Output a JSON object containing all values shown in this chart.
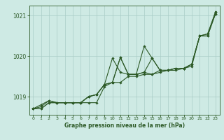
{
  "title": "Graphe pression niveau de la mer (hPa)",
  "background_color": "#ceeae4",
  "grid_color": "#aaccc6",
  "line_color": "#2d5a27",
  "ylim": [
    1018.55,
    1021.25
  ],
  "xlim": [
    -0.5,
    23.5
  ],
  "yticks": [
    1019,
    1020,
    1021
  ],
  "xticks": [
    0,
    1,
    2,
    3,
    4,
    5,
    6,
    7,
    8,
    9,
    10,
    11,
    12,
    13,
    14,
    15,
    16,
    17,
    18,
    19,
    20,
    21,
    22,
    23
  ],
  "series": [
    [
      1018.7,
      1018.7,
      1018.85,
      1018.85,
      1018.85,
      1018.85,
      1018.85,
      1018.85,
      1018.85,
      1019.25,
      1019.35,
      1019.35,
      1019.5,
      1019.5,
      1019.55,
      1019.55,
      1019.6,
      1019.65,
      1019.65,
      1019.7,
      1019.75,
      1020.5,
      1020.5,
      1021.1
    ],
    [
      1018.7,
      1018.75,
      1018.9,
      1018.85,
      1018.85,
      1018.85,
      1018.85,
      1019.0,
      1019.05,
      1019.3,
      1019.95,
      1019.6,
      1019.55,
      1019.55,
      1019.6,
      1019.55,
      1019.65,
      1019.65,
      1019.7,
      1019.7,
      1019.8,
      1020.5,
      1020.5,
      1021.05
    ],
    [
      1018.7,
      1018.7,
      1018.85,
      1018.85,
      1018.85,
      1018.85,
      1018.85,
      1019.0,
      1019.05,
      1019.3,
      1019.35,
      1019.97,
      1019.55,
      1019.55,
      1020.25,
      1019.95,
      1019.65,
      1019.65,
      1019.7,
      1019.7,
      1019.8,
      1020.5,
      1020.55,
      1021.05
    ],
    [
      1018.7,
      1018.8,
      1018.9,
      1018.85,
      1018.85,
      1018.85,
      1018.85,
      1019.0,
      1019.05,
      1019.3,
      1019.35,
      1019.97,
      1019.55,
      1019.55,
      1019.6,
      1019.95,
      1019.65,
      1019.65,
      1019.7,
      1019.7,
      1019.8,
      1020.5,
      1020.55,
      1021.1
    ]
  ]
}
